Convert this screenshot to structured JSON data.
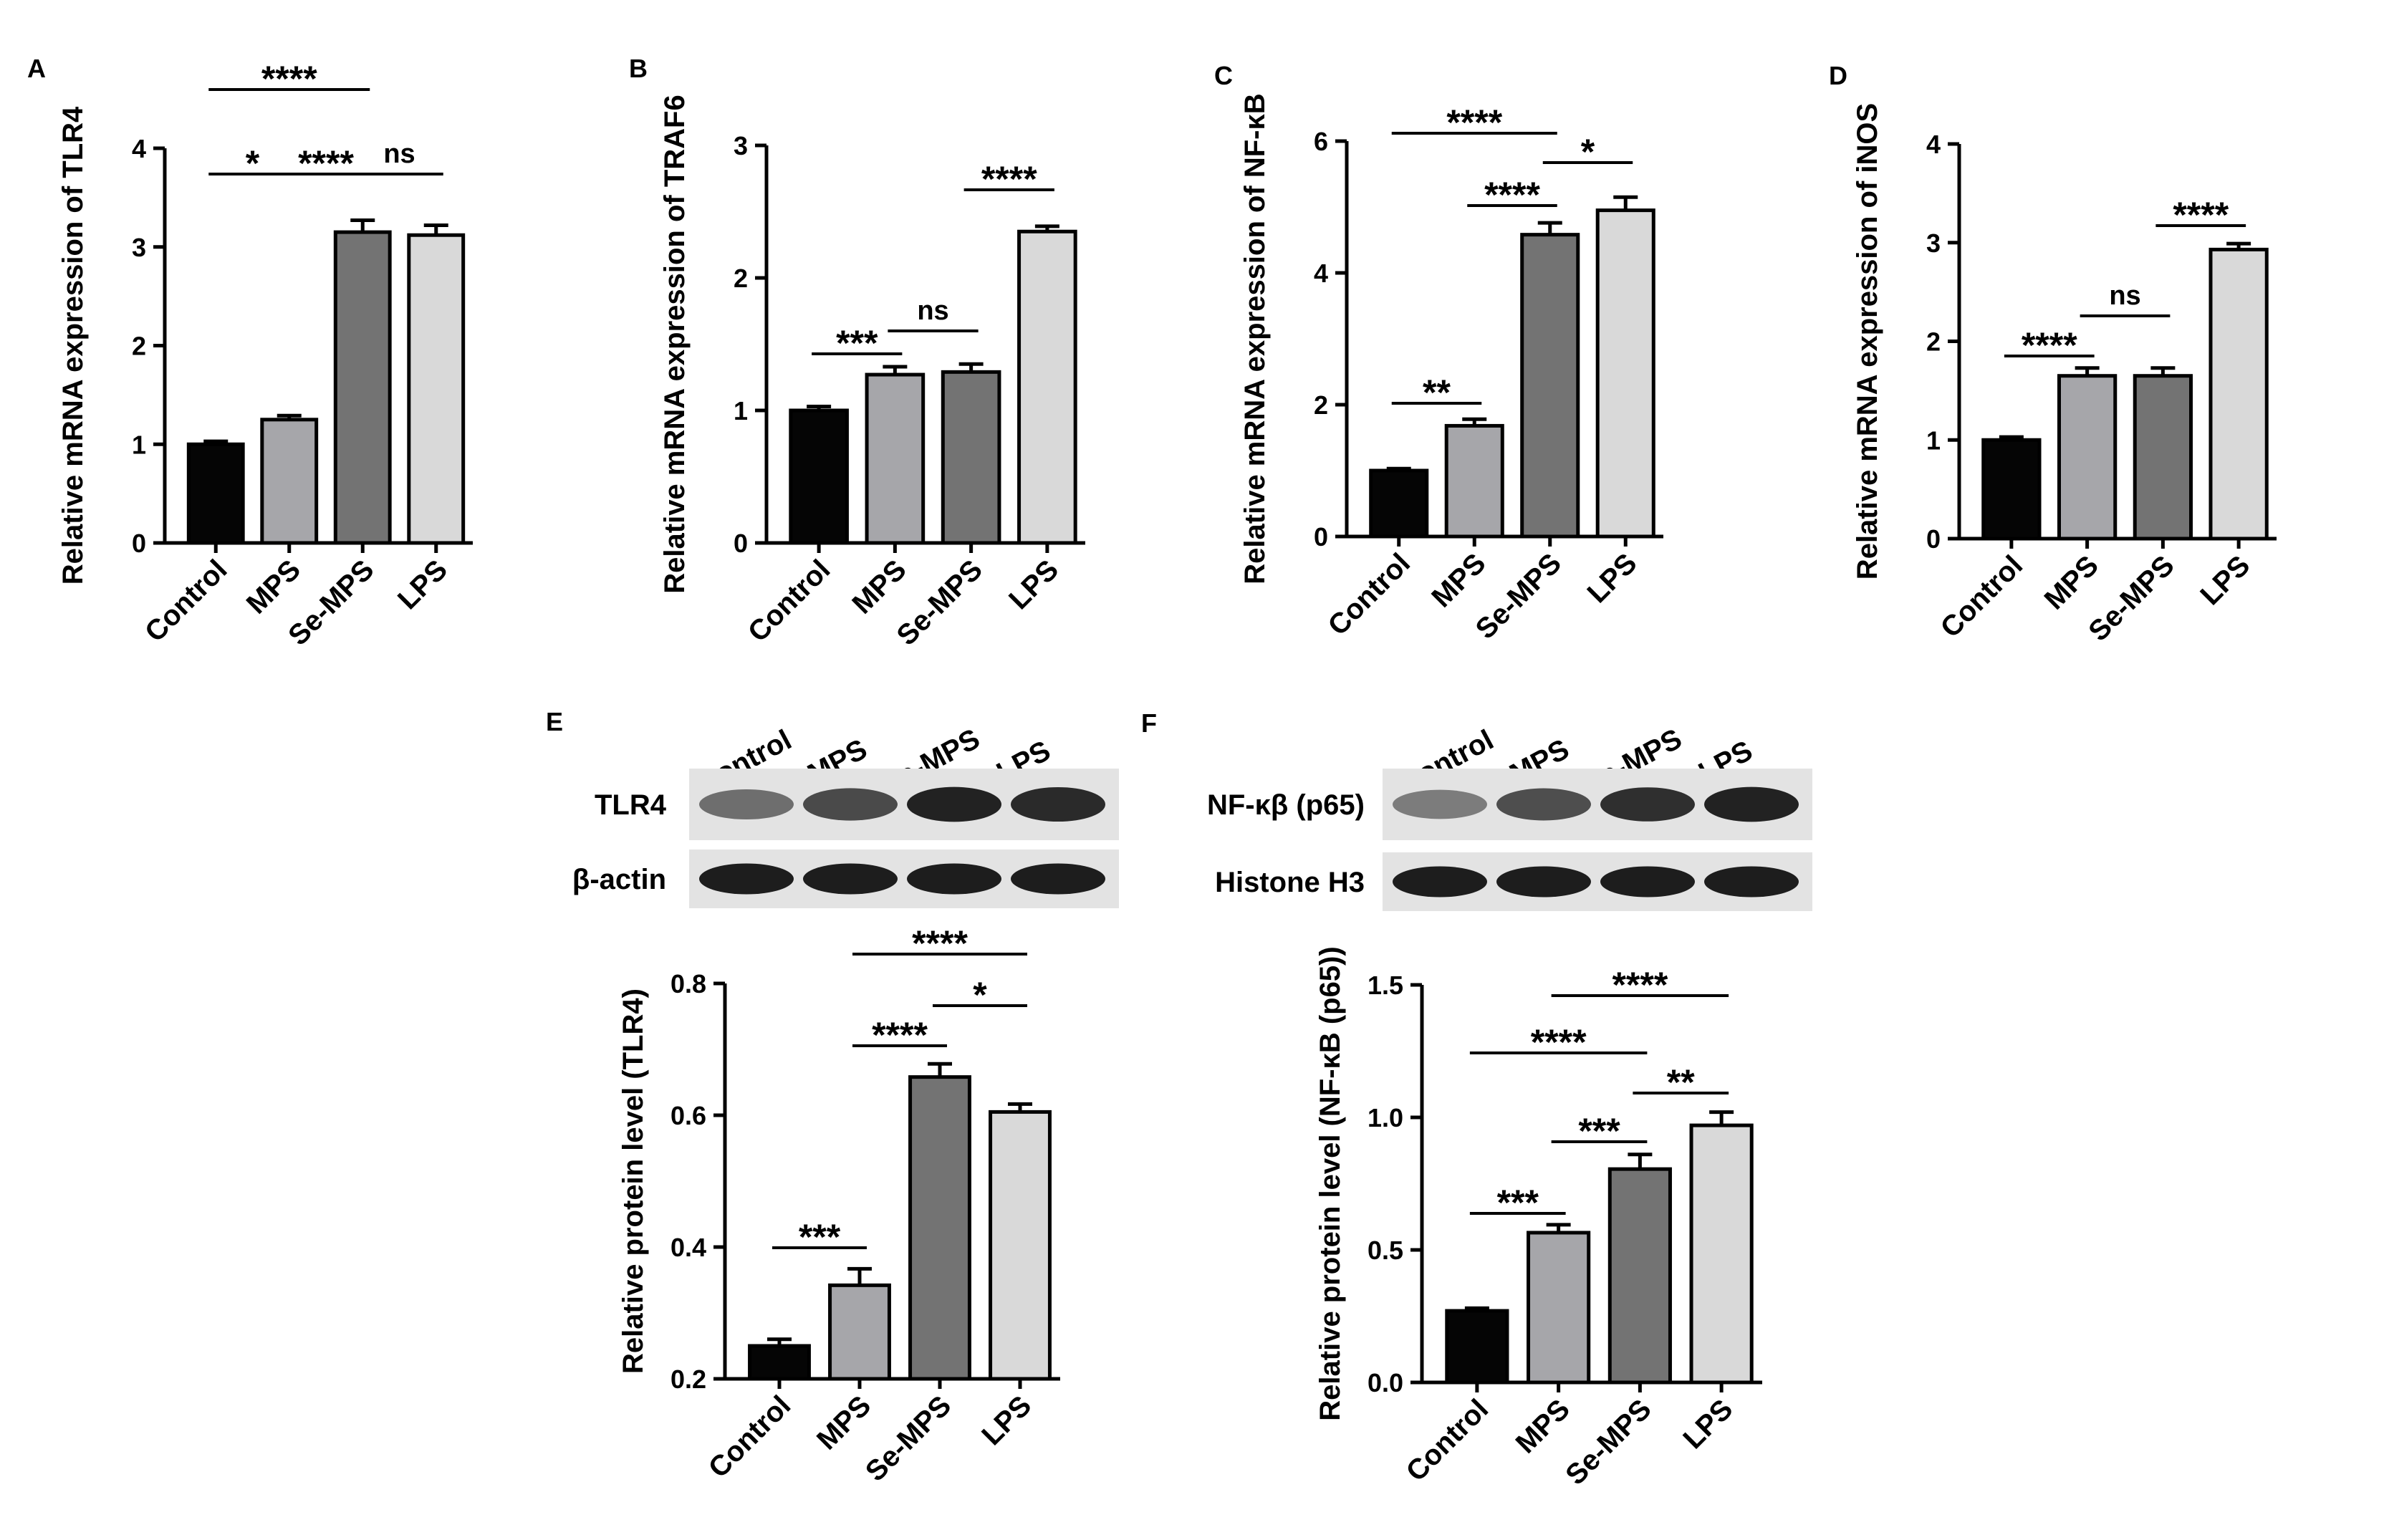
{
  "colors": {
    "Control": "#050505",
    "MPS": "#a6a6aa",
    "Se-MPS": "#737373",
    "LPS": "#d9d9d9",
    "axis": "#000000"
  },
  "chart_data": [
    {
      "panel": "A",
      "type": "bar",
      "ylabel": "Relative mRNA expression of TLR4",
      "categories": [
        "Control",
        "MPS",
        "Se-MPS",
        "LPS"
      ],
      "values": [
        1.0,
        1.25,
        3.15,
        3.12
      ],
      "errors": [
        0.03,
        0.04,
        0.12,
        0.1
      ],
      "ylim": [
        0,
        4
      ],
      "yticks": [
        "0",
        "1",
        "2",
        "3",
        "4"
      ],
      "significance": [
        {
          "from": 0,
          "to": 2,
          "label": "****"
        },
        {
          "from": 0,
          "to": 1,
          "label": "*"
        },
        {
          "from": 1,
          "to": 2,
          "label": "****"
        },
        {
          "from": 2,
          "to": 3,
          "label": "ns"
        }
      ]
    },
    {
      "panel": "B",
      "type": "bar",
      "ylabel": "Relative mRNA expression of TRAF6",
      "categories": [
        "Control",
        "MPS",
        "Se-MPS",
        "LPS"
      ],
      "values": [
        1.0,
        1.27,
        1.29,
        2.35
      ],
      "errors": [
        0.03,
        0.06,
        0.06,
        0.04
      ],
      "ylim": [
        0,
        3
      ],
      "yticks": [
        "0",
        "1",
        "2",
        "3"
      ],
      "significance": [
        {
          "from": 0,
          "to": 1,
          "label": "***"
        },
        {
          "from": 1,
          "to": 2,
          "label": "ns"
        },
        {
          "from": 2,
          "to": 3,
          "label": "****"
        }
      ]
    },
    {
      "panel": "C",
      "type": "bar",
      "ylabel": "Relative mRNA expression of NF-κB",
      "categories": [
        "Control",
        "MPS",
        "Se-MPS",
        "LPS"
      ],
      "values": [
        1.0,
        1.68,
        4.58,
        4.95
      ],
      "errors": [
        0.03,
        0.1,
        0.18,
        0.2
      ],
      "ylim": [
        0,
        6
      ],
      "yticks": [
        "0",
        "2",
        "4",
        "6"
      ],
      "significance": [
        {
          "from": 0,
          "to": 2,
          "label": "****"
        },
        {
          "from": 1,
          "to": 2,
          "label": "****"
        },
        {
          "from": 2,
          "to": 3,
          "label": "*"
        },
        {
          "from": 0,
          "to": 1,
          "label": "**"
        }
      ]
    },
    {
      "panel": "D",
      "type": "bar",
      "ylabel": "Relative mRNA expression of iNOS",
      "categories": [
        "Control",
        "MPS",
        "Se-MPS",
        "LPS"
      ],
      "values": [
        1.0,
        1.65,
        1.65,
        2.93
      ],
      "errors": [
        0.03,
        0.08,
        0.08,
        0.06
      ],
      "ylim": [
        0,
        4
      ],
      "yticks": [
        "0",
        "1",
        "2",
        "3",
        "4"
      ],
      "significance": [
        {
          "from": 0,
          "to": 1,
          "label": "****"
        },
        {
          "from": 1,
          "to": 2,
          "label": "ns"
        },
        {
          "from": 2,
          "to": 3,
          "label": "****"
        }
      ]
    },
    {
      "panel": "E",
      "type": "bar",
      "ylabel": "Relative protein level (TLR4)",
      "categories": [
        "Control",
        "MPS",
        "Se-MPS",
        "LPS"
      ],
      "values": [
        0.25,
        0.342,
        0.658,
        0.605
      ],
      "errors": [
        0.01,
        0.025,
        0.02,
        0.012
      ],
      "ylim": [
        0.2,
        0.8
      ],
      "yticks": [
        "0.2",
        "0.4",
        "0.6",
        "0.8"
      ],
      "significance": [
        {
          "from": 1,
          "to": 3,
          "label": "****"
        },
        {
          "from": 2,
          "to": 3,
          "label": "*"
        },
        {
          "from": 1,
          "to": 2,
          "label": "****"
        },
        {
          "from": 0,
          "to": 1,
          "label": "***"
        }
      ]
    },
    {
      "panel": "F",
      "type": "bar",
      "ylabel": "Relative protein level (NF-κB (p65))",
      "categories": [
        "Control",
        "MPS",
        "Se-MPS",
        "LPS"
      ],
      "values": [
        0.27,
        0.565,
        0.805,
        0.97
      ],
      "errors": [
        0.01,
        0.03,
        0.055,
        0.05
      ],
      "ylim": [
        0,
        1.5
      ],
      "yticks": [
        "0.0",
        "0.5",
        "1.0",
        "1.5"
      ],
      "significance": [
        {
          "from": 1,
          "to": 3,
          "label": "****"
        },
        {
          "from": 0,
          "to": 2,
          "label": "****"
        },
        {
          "from": 2,
          "to": 3,
          "label": "**"
        },
        {
          "from": 1,
          "to": 2,
          "label": "***"
        },
        {
          "from": 0,
          "to": 1,
          "label": "***"
        }
      ]
    }
  ],
  "blots": [
    {
      "panel": "E",
      "lanes": [
        "Control",
        "MPS",
        "Se-MPS",
        "LPS"
      ],
      "rows": [
        {
          "label": "TLR4",
          "intensity": [
            0.5,
            0.7,
            0.92,
            0.88
          ]
        },
        {
          "label": "β-actin",
          "intensity": [
            0.95,
            0.95,
            0.95,
            0.95
          ]
        }
      ]
    },
    {
      "panel": "F",
      "lanes": [
        "Control",
        "MPS",
        "Se-MPS",
        "LPS"
      ],
      "rows": [
        {
          "label": "NF-κβ (p65)",
          "intensity": [
            0.42,
            0.68,
            0.85,
            0.92
          ]
        },
        {
          "label": "Histone H3",
          "intensity": [
            0.95,
            0.95,
            0.95,
            0.95
          ]
        }
      ]
    }
  ]
}
